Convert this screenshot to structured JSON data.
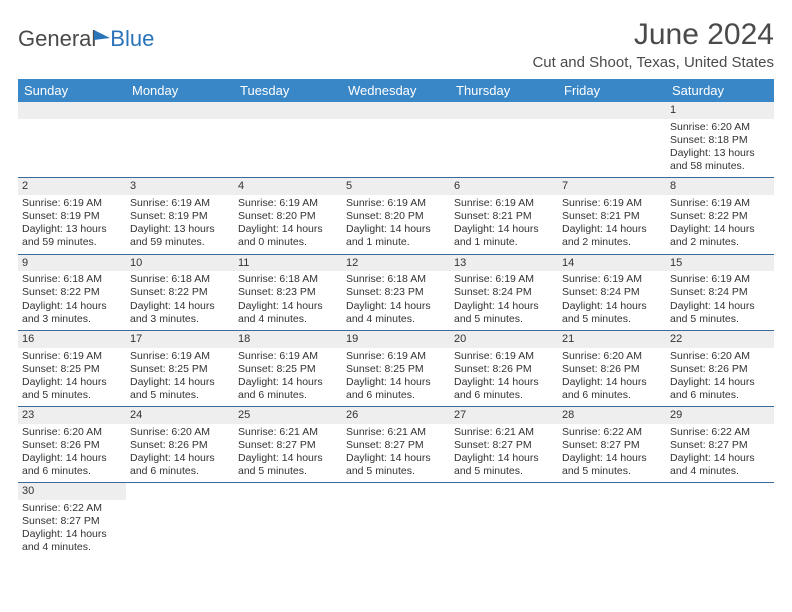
{
  "brand": {
    "part1": "General",
    "part2": "Blue"
  },
  "title": "June 2024",
  "subtitle": "Cut and Shoot, Texas, United States",
  "colors": {
    "header_bg": "#3a87c8",
    "header_text": "#ffffff",
    "daynum_bg": "#eeeeee",
    "rule": "#3a6a9a",
    "body_text": "#333333",
    "brand_blue": "#2a73b8",
    "brand_grey": "#4a4a4a"
  },
  "typography": {
    "title_fontsize": 30,
    "subtitle_fontsize": 15,
    "dayhead_fontsize": 13,
    "cell_fontsize": 10.5
  },
  "layout": {
    "columns": 7,
    "col_width_pct": 14.28
  },
  "dayHeaders": [
    "Sunday",
    "Monday",
    "Tuesday",
    "Wednesday",
    "Thursday",
    "Friday",
    "Saturday"
  ],
  "weeks": [
    [
      null,
      null,
      null,
      null,
      null,
      null,
      {
        "n": "1",
        "sr": "Sunrise: 6:20 AM",
        "ss": "Sunset: 8:18 PM",
        "dl": "Daylight: 13 hours and 58 minutes."
      }
    ],
    [
      {
        "n": "2",
        "sr": "Sunrise: 6:19 AM",
        "ss": "Sunset: 8:19 PM",
        "dl": "Daylight: 13 hours and 59 minutes."
      },
      {
        "n": "3",
        "sr": "Sunrise: 6:19 AM",
        "ss": "Sunset: 8:19 PM",
        "dl": "Daylight: 13 hours and 59 minutes."
      },
      {
        "n": "4",
        "sr": "Sunrise: 6:19 AM",
        "ss": "Sunset: 8:20 PM",
        "dl": "Daylight: 14 hours and 0 minutes."
      },
      {
        "n": "5",
        "sr": "Sunrise: 6:19 AM",
        "ss": "Sunset: 8:20 PM",
        "dl": "Daylight: 14 hours and 1 minute."
      },
      {
        "n": "6",
        "sr": "Sunrise: 6:19 AM",
        "ss": "Sunset: 8:21 PM",
        "dl": "Daylight: 14 hours and 1 minute."
      },
      {
        "n": "7",
        "sr": "Sunrise: 6:19 AM",
        "ss": "Sunset: 8:21 PM",
        "dl": "Daylight: 14 hours and 2 minutes."
      },
      {
        "n": "8",
        "sr": "Sunrise: 6:19 AM",
        "ss": "Sunset: 8:22 PM",
        "dl": "Daylight: 14 hours and 2 minutes."
      }
    ],
    [
      {
        "n": "9",
        "sr": "Sunrise: 6:18 AM",
        "ss": "Sunset: 8:22 PM",
        "dl": "Daylight: 14 hours and 3 minutes."
      },
      {
        "n": "10",
        "sr": "Sunrise: 6:18 AM",
        "ss": "Sunset: 8:22 PM",
        "dl": "Daylight: 14 hours and 3 minutes."
      },
      {
        "n": "11",
        "sr": "Sunrise: 6:18 AM",
        "ss": "Sunset: 8:23 PM",
        "dl": "Daylight: 14 hours and 4 minutes."
      },
      {
        "n": "12",
        "sr": "Sunrise: 6:18 AM",
        "ss": "Sunset: 8:23 PM",
        "dl": "Daylight: 14 hours and 4 minutes."
      },
      {
        "n": "13",
        "sr": "Sunrise: 6:19 AM",
        "ss": "Sunset: 8:24 PM",
        "dl": "Daylight: 14 hours and 5 minutes."
      },
      {
        "n": "14",
        "sr": "Sunrise: 6:19 AM",
        "ss": "Sunset: 8:24 PM",
        "dl": "Daylight: 14 hours and 5 minutes."
      },
      {
        "n": "15",
        "sr": "Sunrise: 6:19 AM",
        "ss": "Sunset: 8:24 PM",
        "dl": "Daylight: 14 hours and 5 minutes."
      }
    ],
    [
      {
        "n": "16",
        "sr": "Sunrise: 6:19 AM",
        "ss": "Sunset: 8:25 PM",
        "dl": "Daylight: 14 hours and 5 minutes."
      },
      {
        "n": "17",
        "sr": "Sunrise: 6:19 AM",
        "ss": "Sunset: 8:25 PM",
        "dl": "Daylight: 14 hours and 5 minutes."
      },
      {
        "n": "18",
        "sr": "Sunrise: 6:19 AM",
        "ss": "Sunset: 8:25 PM",
        "dl": "Daylight: 14 hours and 6 minutes."
      },
      {
        "n": "19",
        "sr": "Sunrise: 6:19 AM",
        "ss": "Sunset: 8:25 PM",
        "dl": "Daylight: 14 hours and 6 minutes."
      },
      {
        "n": "20",
        "sr": "Sunrise: 6:19 AM",
        "ss": "Sunset: 8:26 PM",
        "dl": "Daylight: 14 hours and 6 minutes."
      },
      {
        "n": "21",
        "sr": "Sunrise: 6:20 AM",
        "ss": "Sunset: 8:26 PM",
        "dl": "Daylight: 14 hours and 6 minutes."
      },
      {
        "n": "22",
        "sr": "Sunrise: 6:20 AM",
        "ss": "Sunset: 8:26 PM",
        "dl": "Daylight: 14 hours and 6 minutes."
      }
    ],
    [
      {
        "n": "23",
        "sr": "Sunrise: 6:20 AM",
        "ss": "Sunset: 8:26 PM",
        "dl": "Daylight: 14 hours and 6 minutes."
      },
      {
        "n": "24",
        "sr": "Sunrise: 6:20 AM",
        "ss": "Sunset: 8:26 PM",
        "dl": "Daylight: 14 hours and 6 minutes."
      },
      {
        "n": "25",
        "sr": "Sunrise: 6:21 AM",
        "ss": "Sunset: 8:27 PM",
        "dl": "Daylight: 14 hours and 5 minutes."
      },
      {
        "n": "26",
        "sr": "Sunrise: 6:21 AM",
        "ss": "Sunset: 8:27 PM",
        "dl": "Daylight: 14 hours and 5 minutes."
      },
      {
        "n": "27",
        "sr": "Sunrise: 6:21 AM",
        "ss": "Sunset: 8:27 PM",
        "dl": "Daylight: 14 hours and 5 minutes."
      },
      {
        "n": "28",
        "sr": "Sunrise: 6:22 AM",
        "ss": "Sunset: 8:27 PM",
        "dl": "Daylight: 14 hours and 5 minutes."
      },
      {
        "n": "29",
        "sr": "Sunrise: 6:22 AM",
        "ss": "Sunset: 8:27 PM",
        "dl": "Daylight: 14 hours and 4 minutes."
      }
    ],
    [
      {
        "n": "30",
        "sr": "Sunrise: 6:22 AM",
        "ss": "Sunset: 8:27 PM",
        "dl": "Daylight: 14 hours and 4 minutes."
      },
      null,
      null,
      null,
      null,
      null,
      null
    ]
  ]
}
